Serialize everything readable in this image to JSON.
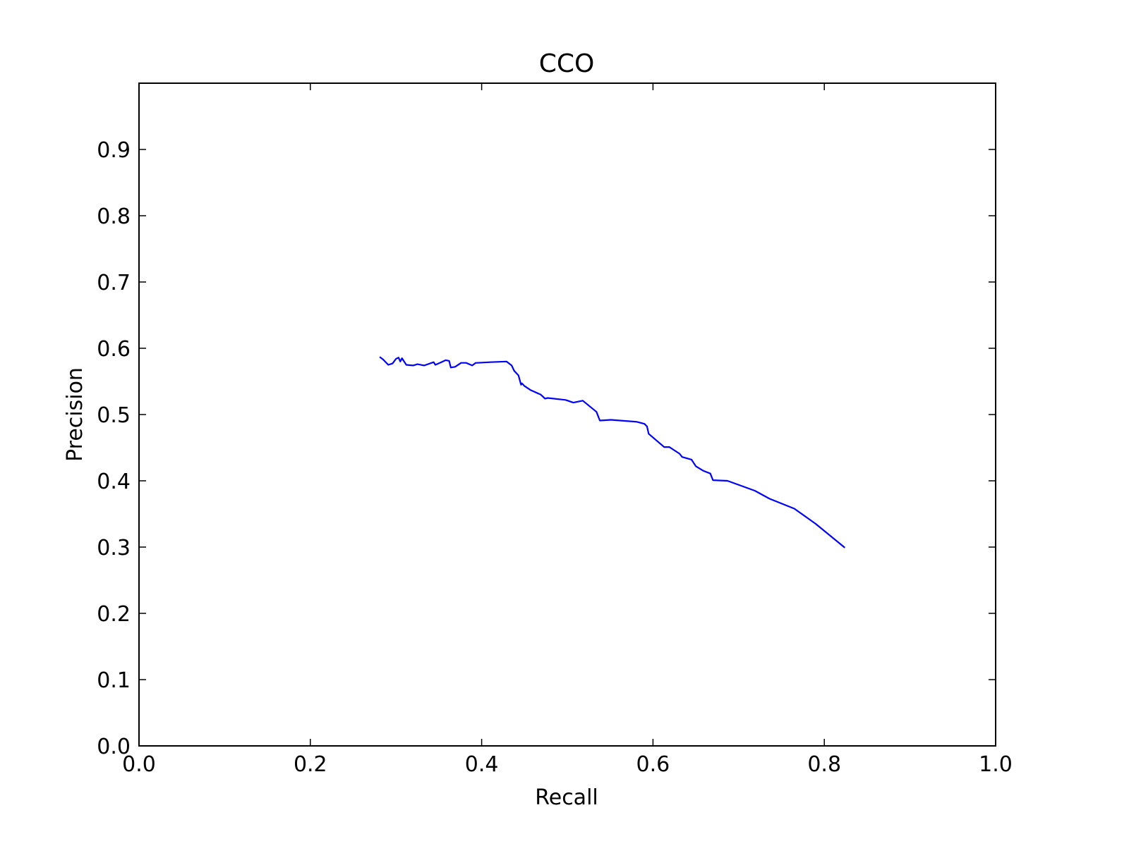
{
  "chart_data": {
    "type": "line",
    "title": "CCO",
    "xlabel": "Recall",
    "ylabel": "Precision",
    "xlim": [
      0.0,
      1.0
    ],
    "ylim": [
      0.0,
      1.0
    ],
    "x_ticks": [
      "0.0",
      "0.2",
      "0.4",
      "0.6",
      "0.8",
      "1.0"
    ],
    "y_ticks": [
      "0.0",
      "0.1",
      "0.2",
      "0.3",
      "0.4",
      "0.5",
      "0.6",
      "0.7",
      "0.8",
      "0.9"
    ],
    "grid": false,
    "legend": "none",
    "series": [
      {
        "color": "#0000ff",
        "x": [
          0.281,
          0.285,
          0.291,
          0.296,
          0.3,
          0.303,
          0.305,
          0.307,
          0.312,
          0.32,
          0.325,
          0.333,
          0.344,
          0.346,
          0.353,
          0.358,
          0.362,
          0.364,
          0.369,
          0.376,
          0.382,
          0.389,
          0.393,
          0.395,
          0.41,
          0.429,
          0.435,
          0.438,
          0.443,
          0.446,
          0.447,
          0.45,
          0.457,
          0.469,
          0.474,
          0.477,
          0.498,
          0.507,
          0.518,
          0.534,
          0.538,
          0.551,
          0.581,
          0.59,
          0.593,
          0.595,
          0.613,
          0.619,
          0.631,
          0.634,
          0.645,
          0.65,
          0.659,
          0.667,
          0.67,
          0.687,
          0.719,
          0.736,
          0.765,
          0.79,
          0.824
        ],
        "y": [
          0.587,
          0.583,
          0.575,
          0.577,
          0.584,
          0.586,
          0.58,
          0.585,
          0.575,
          0.574,
          0.576,
          0.574,
          0.579,
          0.575,
          0.579,
          0.582,
          0.581,
          0.571,
          0.572,
          0.578,
          0.578,
          0.574,
          0.578,
          0.578,
          0.579,
          0.58,
          0.574,
          0.566,
          0.559,
          0.545,
          0.547,
          0.543,
          0.537,
          0.53,
          0.524,
          0.525,
          0.522,
          0.518,
          0.521,
          0.504,
          0.491,
          0.492,
          0.489,
          0.486,
          0.482,
          0.471,
          0.451,
          0.451,
          0.441,
          0.436,
          0.432,
          0.422,
          0.415,
          0.411,
          0.401,
          0.4,
          0.385,
          0.373,
          0.358,
          0.335,
          0.299
        ]
      }
    ]
  }
}
